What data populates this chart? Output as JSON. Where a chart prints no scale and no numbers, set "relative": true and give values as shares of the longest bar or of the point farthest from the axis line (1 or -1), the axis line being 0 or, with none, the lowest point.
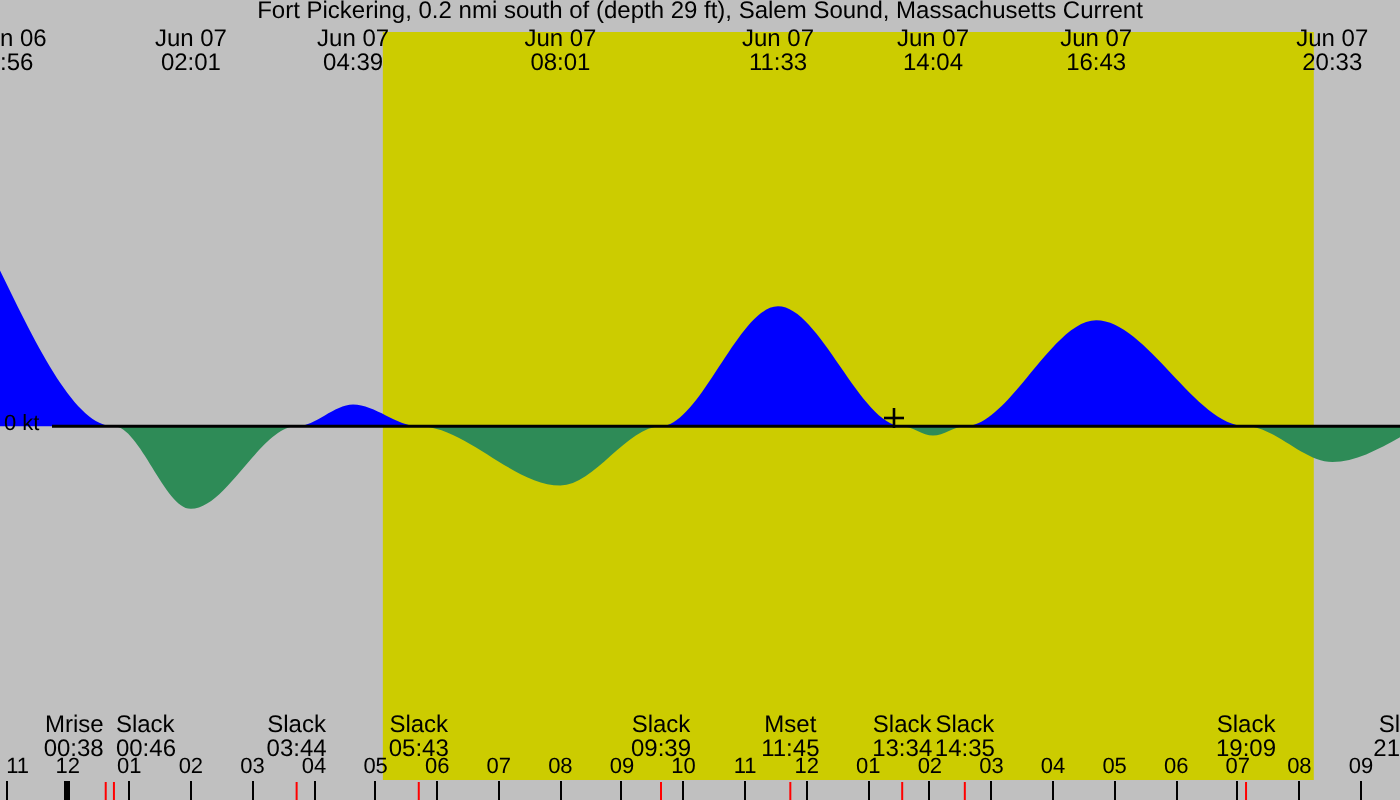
{
  "chart_data": {
    "type": "area",
    "title": "Fort Pickering, 0.2 nmi south of (depth 29 ft), Salem Sound, Massachusetts Current",
    "relative": true,
    "x": [
      "--06-06T22:55",
      "--06-07T00:46",
      "--06-07T02:01",
      "--06-07T03:44",
      "--06-07T04:39",
      "--06-07T05:43",
      "--06-07T08:01",
      "--06-07T09:39",
      "--06-07T11:33",
      "--06-07T13:34",
      "--06-07T14:04",
      "--06-07T14:35",
      "--06-07T16:43",
      "--06-07T19:09",
      "--06-07T20:33",
      "--06-07T21:39"
    ],
    "series": [
      {
        "color": "#0000ff",
        "values": [
          1,
          0,
          0,
          0,
          0.14,
          0,
          0,
          0,
          0.77,
          0,
          0,
          0,
          0.68,
          0,
          0,
          0
        ]
      },
      {
        "color": "#2e8b57",
        "values": [
          0,
          0,
          -0.53,
          0,
          0,
          0,
          -0.38,
          0,
          0,
          0,
          -0.06,
          0,
          0,
          0,
          -0.23,
          -0.07
        ]
      }
    ],
    "xlim": [
      "--06-06T22:55",
      "--06-07T21:39"
    ],
    "xticks": [
      {
        "value": "--06-06T23:00",
        "label": "11"
      },
      {
        "value": "--06-07T00:00",
        "label": "12"
      },
      {
        "value": "--06-07T01:00",
        "label": "01"
      },
      {
        "value": "--06-07T02:00",
        "label": "02"
      },
      {
        "value": "--06-07T03:00",
        "label": "03"
      },
      {
        "value": "--06-07T04:00",
        "label": "04"
      },
      {
        "value": "--06-07T05:00",
        "label": "05"
      },
      {
        "value": "--06-07T06:00",
        "label": "06"
      },
      {
        "value": "--06-07T07:00",
        "label": "07"
      },
      {
        "value": "--06-07T08:00",
        "label": "08"
      },
      {
        "value": "--06-07T09:00",
        "label": "09"
      },
      {
        "value": "--06-07T10:00",
        "label": "10"
      },
      {
        "value": "--06-07T11:00",
        "label": "11"
      },
      {
        "value": "--06-07T12:00",
        "label": "12"
      },
      {
        "value": "--06-07T13:00",
        "label": "01"
      },
      {
        "value": "--06-07T14:00",
        "label": "02"
      },
      {
        "value": "--06-07T15:00",
        "label": "03"
      },
      {
        "value": "--06-07T16:00",
        "label": "04"
      },
      {
        "value": "--06-07T17:00",
        "label": "05"
      },
      {
        "value": "--06-07T18:00",
        "label": "06"
      },
      {
        "value": "--06-07T19:00",
        "label": "07"
      },
      {
        "value": "--06-07T20:00",
        "label": "08"
      },
      {
        "value": "--06-07T21:00",
        "label": "09"
      }
    ],
    "bands": [
      {
        "axis": "x",
        "from": "--06-07T05:08",
        "to": "--06-07T20:15",
        "color": "#cccc00"
      }
    ],
    "ref_lines": [
      {
        "axis": "y",
        "value": 0,
        "label": "0 kt"
      },
      {
        "axis": "x",
        "value": "--06-07T00:38",
        "label": "Mrise\n00:38",
        "color": "#ff0000"
      },
      {
        "axis": "x",
        "value": "--06-07T00:46",
        "label": "Slack\n00:46",
        "color": "#ff0000"
      },
      {
        "axis": "x",
        "value": "--06-07T03:44",
        "label": "Slack\n03:44",
        "color": "#ff0000"
      },
      {
        "axis": "x",
        "value": "--06-07T05:43",
        "label": "Slack\n05:43",
        "color": "#ff0000"
      },
      {
        "axis": "x",
        "value": "--06-07T09:39",
        "label": "Slack\n09:39",
        "color": "#ff0000"
      },
      {
        "axis": "x",
        "value": "--06-07T11:45",
        "label": "Mset\n11:45",
        "color": "#ff0000"
      },
      {
        "axis": "x",
        "value": "--06-07T13:34",
        "label": "Slack\n13:34",
        "color": "#ff0000"
      },
      {
        "axis": "x",
        "value": "--06-07T14:35",
        "label": "Slack\n14:35",
        "color": "#ff0000"
      },
      {
        "axis": "x",
        "value": "--06-07T19:09",
        "label": "Slack\n19:09",
        "color": "#ff0000"
      }
    ],
    "annotations": [
      "n 06\n:56",
      "Jun 07\n02:01",
      "Jun 07\n04:39",
      "Jun 07\n08:01",
      "Jun 07\n11:33",
      "Jun 07\n14:04",
      "Jun 07\n16:43",
      "Jun 07\n20:33",
      "Sl\n21"
    ]
  }
}
